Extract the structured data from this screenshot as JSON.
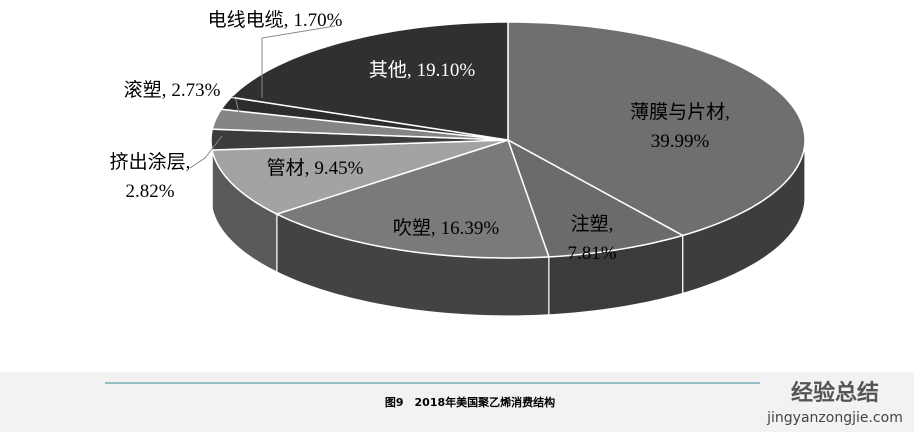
{
  "chart_data": {
    "type": "pie3d",
    "categories": [
      "薄膜与片材,",
      "注塑,",
      "吹塑,",
      "管材,",
      "挤出涂层,",
      "滚塑,",
      "电线电缆,",
      "其他,"
    ],
    "values": [
      39.99,
      7.81,
      16.39,
      9.45,
      2.82,
      2.73,
      1.7,
      19.1
    ],
    "value_labels": [
      "39.99%",
      "7.81%",
      "16.39%",
      "9.45%",
      "2.82%",
      "2.73%",
      "1.70%",
      "19.10%"
    ],
    "colors": [
      "#6f6f6f",
      "#6b6b6b",
      "#7a7a7a",
      "#a3a3a3",
      "#3c3c3c",
      "#858585",
      "#2c2c2c",
      "#303030"
    ],
    "caption": "图9　2018年美国聚乙烯消费结构"
  },
  "watermark": {
    "title": "经验总结",
    "url": "jingyanzongjie.com"
  }
}
